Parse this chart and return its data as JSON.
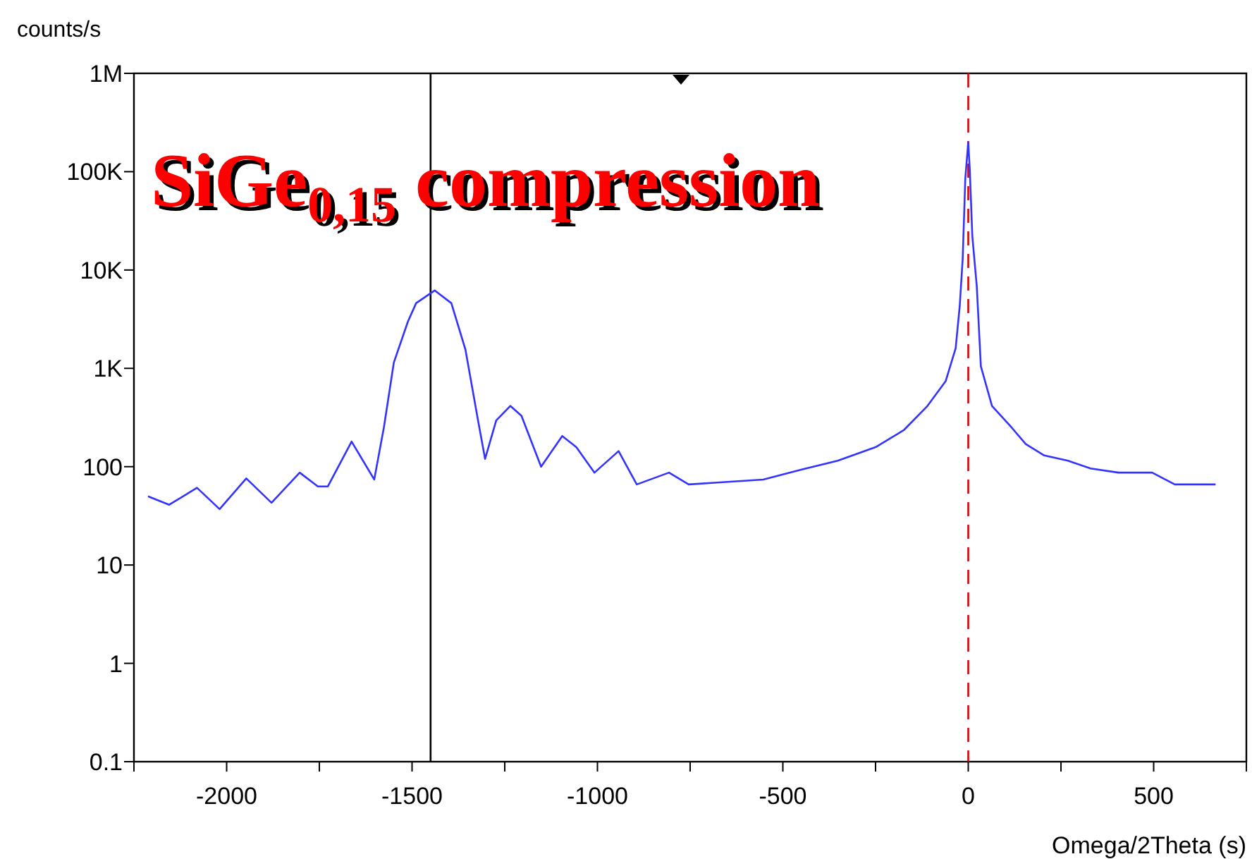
{
  "chart_data": {
    "type": "line",
    "title": "SiGe$_{0,15}$ compression",
    "xlabel": "Omega/2Theta (s)",
    "ylabel": "counts/s",
    "log": "y",
    "xlim": [
      -2250,
      750
    ],
    "ylim": [
      0.1,
      1000000
    ],
    "xticks": [
      {
        "value": -2250,
        "label": null
      },
      -2000,
      {
        "value": -1750,
        "label": null
      },
      -1500,
      {
        "value": -1250,
        "label": null
      },
      -1000,
      {
        "value": -750,
        "label": null
      },
      -500,
      {
        "value": -250,
        "label": null
      },
      0,
      {
        "value": 250,
        "label": null
      },
      500,
      {
        "value": 750,
        "label": null
      }
    ],
    "yticks": [
      {
        "value": 0.1,
        "label": "0.1"
      },
      {
        "value": 1,
        "label": "1"
      },
      {
        "value": 10,
        "label": "10"
      },
      {
        "value": 100,
        "label": "100"
      },
      {
        "value": 1000,
        "label": "1K"
      },
      {
        "value": 10000,
        "label": "10K"
      },
      {
        "value": 100000,
        "label": "100K"
      },
      {
        "value": 1000000,
        "label": "1M"
      }
    ],
    "grid": false,
    "marker": "none",
    "line_style": "solid",
    "series": [
      {
        "color": "#3333ff",
        "x": [
          -2212,
          -2155,
          -2080,
          -2019,
          -1947,
          -1879,
          -1803,
          -1754,
          -1727,
          -1663,
          -1602,
          -1576,
          -1549,
          -1511,
          -1489,
          -1439,
          -1394,
          -1356,
          -1322,
          -1303,
          -1273,
          -1235,
          -1205,
          -1152,
          -1095,
          -1057,
          -1008,
          -943,
          -894,
          -807,
          -754,
          -678,
          -553,
          -451,
          -352,
          -250,
          -174,
          -110,
          -61,
          -34,
          -23,
          -15,
          -8,
          0,
          4,
          11,
          23,
          34,
          64,
          117,
          155,
          205,
          269,
          330,
          405,
          496,
          557,
          667
        ],
        "values": [
          50,
          41,
          61,
          37,
          76,
          43,
          87,
          63,
          63,
          180,
          74,
          250,
          1150,
          3000,
          4600,
          6200,
          4600,
          1550,
          295,
          120,
          295,
          415,
          330,
          100,
          205,
          158,
          87,
          144,
          66,
          87,
          66,
          69,
          74,
          93,
          115,
          158,
          235,
          415,
          740,
          1600,
          4300,
          13000,
          85000,
          200000,
          107000,
          22000,
          6800,
          1050,
          415,
          250,
          170,
          130,
          115,
          96,
          87,
          87,
          66,
          66
        ]
      }
    ],
    "ref_lines": [
      {
        "axis": "x",
        "value": -1450,
        "color": "#000000",
        "line_style": "solid"
      },
      {
        "axis": "x",
        "value": 0,
        "color": "#dd0000",
        "line_style": "dashed"
      }
    ]
  }
}
